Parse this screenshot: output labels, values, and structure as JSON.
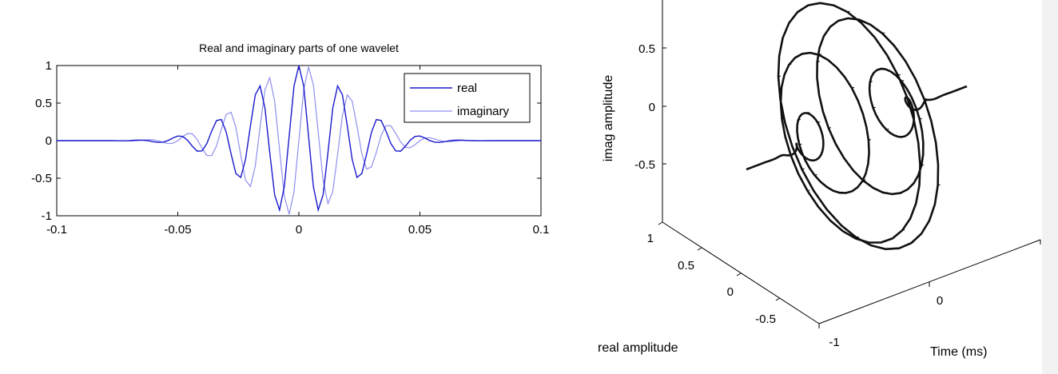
{
  "chart_data": [
    {
      "type": "line",
      "title": "Real and imaginary parts of one wavelet",
      "xlabel": "",
      "ylabel": "",
      "xlim": [
        -0.1,
        0.1
      ],
      "ylim": [
        -1,
        1
      ],
      "x_ticks": [
        "-0.1",
        "-0.05",
        "0",
        "0.05",
        "0.1"
      ],
      "y_ticks": [
        "1",
        "0.5",
        "0",
        "-0.5",
        "-1"
      ],
      "legend_position": "top-right",
      "wavelet": {
        "center_frequency_hz": 60,
        "gaussian_sigma_s": 0.0212
      },
      "series": [
        {
          "name": "real",
          "kind": "cosine",
          "color": "#1a1acc"
        },
        {
          "name": "imaginary",
          "kind": "sine",
          "color": "#8f8fef"
        }
      ]
    },
    {
      "type": "line",
      "projection": "3d",
      "xlabel": "Time (ms)",
      "ylabel": "real amplitude",
      "zlabel": "imag amplitude",
      "time_ticks": [
        "-1",
        "0",
        "1"
      ],
      "real_ticks": [
        "1",
        "0.5",
        "0",
        "-0.5"
      ],
      "imag_ticks": [
        "0.5",
        "0",
        "-0.5"
      ],
      "color": "#000000"
    }
  ]
}
